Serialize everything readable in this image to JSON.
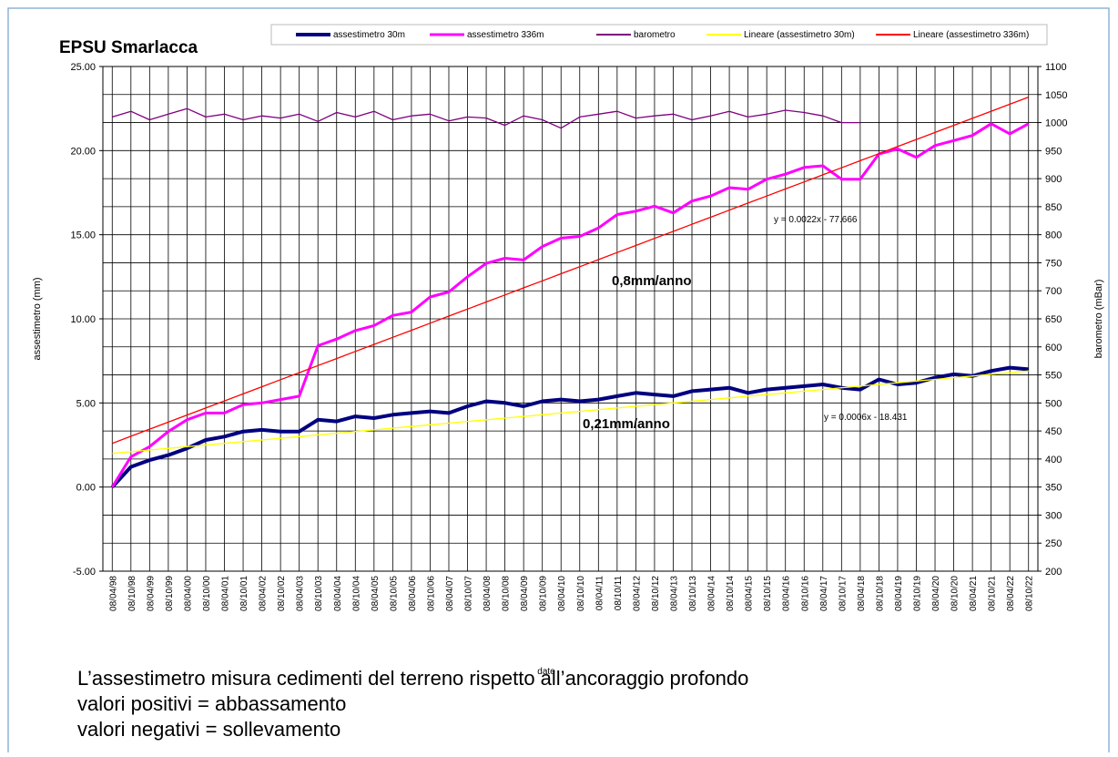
{
  "chart_data": {
    "type": "line",
    "title": "EPSU Smarlacca",
    "y_label": "assestimetro (mm)",
    "y2_label": "barometro (mBar)",
    "x_label": "date",
    "legend": "top",
    "grid": true,
    "categories": [
      "08/04/98",
      "08/10/98",
      "08/04/99",
      "08/10/99",
      "08/04/00",
      "08/10/00",
      "08/04/01",
      "08/10/01",
      "08/04/02",
      "08/10/02",
      "08/04/03",
      "08/10/03",
      "08/04/04",
      "08/10/04",
      "08/04/05",
      "08/10/05",
      "08/04/06",
      "08/10/06",
      "08/04/07",
      "08/10/07",
      "08/04/08",
      "08/10/08",
      "08/04/09",
      "08/10/09",
      "08/04/10",
      "08/10/10",
      "08/04/11",
      "08/10/11",
      "08/04/12",
      "08/10/12",
      "08/04/13",
      "08/10/13",
      "08/04/14",
      "08/10/14",
      "08/04/15",
      "08/10/15",
      "08/04/16",
      "08/10/16",
      "08/04/17",
      "08/10/17",
      "08/04/18",
      "08/10/18",
      "08/04/19",
      "08/10/19",
      "08/04/20",
      "08/10/20",
      "08/04/21",
      "08/10/21",
      "08/04/22",
      "08/10/22"
    ],
    "ylim": [
      -5,
      25
    ],
    "yticks": [
      {
        "value": -5,
        "label": "-5.00"
      },
      {
        "value": 0,
        "label": "0.00"
      },
      {
        "value": 5,
        "label": "5.00"
      },
      {
        "value": 10,
        "label": "10.00"
      },
      {
        "value": 15,
        "label": "15.00"
      },
      {
        "value": 20,
        "label": "20.00"
      },
      {
        "value": 25,
        "label": "25.00"
      }
    ],
    "y2lim": [
      200,
      1100
    ],
    "y2ticks": [
      200,
      250,
      300,
      350,
      400,
      450,
      500,
      550,
      600,
      650,
      700,
      750,
      800,
      850,
      900,
      950,
      1000,
      1050,
      1100
    ],
    "series": [
      {
        "name": "assestimetro 30m",
        "color": "#000080",
        "values": [
          0.0,
          1.2,
          1.6,
          1.9,
          2.3,
          2.8,
          3.0,
          3.3,
          3.4,
          3.3,
          3.3,
          4.0,
          3.9,
          4.2,
          4.1,
          4.3,
          4.4,
          4.5,
          4.4,
          4.8,
          5.1,
          5.0,
          4.8,
          5.1,
          5.2,
          5.1,
          5.2,
          5.4,
          5.6,
          5.5,
          5.4,
          5.7,
          5.8,
          5.9,
          5.6,
          5.8,
          5.9,
          6.0,
          6.1,
          5.9,
          5.8,
          6.4,
          6.1,
          6.2,
          6.5,
          6.7,
          6.6,
          6.9,
          7.1,
          7.0
        ]
      },
      {
        "name": "assestimetro 336m",
        "color": "#ff00ff",
        "values": [
          0.0,
          1.8,
          2.4,
          3.3,
          4.0,
          4.4,
          4.4,
          4.9,
          5.0,
          5.2,
          5.4,
          8.4,
          8.8,
          9.3,
          9.6,
          10.2,
          10.4,
          11.3,
          11.6,
          12.5,
          13.3,
          13.6,
          13.5,
          14.3,
          14.8,
          14.9,
          15.4,
          16.2,
          16.4,
          16.7,
          16.3,
          17.0,
          17.3,
          17.8,
          17.7,
          18.3,
          18.6,
          19.0,
          19.1,
          18.3,
          18.3,
          19.8,
          20.1,
          19.6,
          20.3,
          20.6,
          20.9,
          21.6,
          21.0,
          21.6
        ]
      },
      {
        "name": "barometro",
        "color": "#800080",
        "axis": "y2",
        "values": [
          1010,
          1020,
          1005,
          1015,
          1025,
          1010,
          1015,
          1005,
          1012,
          1008,
          1015,
          1002,
          1018,
          1010,
          1020,
          1005,
          1012,
          1015,
          1003,
          1010,
          1008,
          995,
          1012,
          1005,
          990,
          1010,
          1015,
          1020,
          1008,
          1012,
          1015,
          1005,
          1012,
          1020,
          1010,
          1015,
          1022,
          1018,
          1012,
          1000,
          1000,
          null,
          null,
          null,
          null,
          null,
          null,
          null,
          null,
          null
        ]
      },
      {
        "name": "Lineare (assestimetro 30m)",
        "color": "#ffff00",
        "values": [
          2.0,
          2.1,
          2.2,
          2.3,
          2.4,
          2.5,
          2.6,
          2.7,
          2.8,
          2.9,
          3.0,
          3.1,
          3.2,
          3.3,
          3.4,
          3.5,
          3.6,
          3.7,
          3.8,
          3.9,
          4.0,
          4.1,
          4.2,
          4.3,
          4.4,
          4.5,
          4.6,
          4.7,
          4.8,
          4.9,
          5.0,
          5.1,
          5.2,
          5.3,
          5.4,
          5.5,
          5.6,
          5.7,
          5.8,
          5.9,
          6.0,
          6.1,
          6.2,
          6.3,
          6.4,
          6.5,
          6.6,
          6.7,
          6.8,
          6.9
        ]
      },
      {
        "name": "Lineare (assestimetro 336m)",
        "color": "#ff0000",
        "values": [
          2.6,
          3.02,
          3.44,
          3.86,
          4.28,
          4.7,
          5.12,
          5.54,
          5.96,
          6.38,
          6.8,
          7.22,
          7.64,
          8.06,
          8.48,
          8.9,
          9.32,
          9.74,
          10.16,
          10.58,
          11.0,
          11.42,
          11.84,
          12.26,
          12.68,
          13.1,
          13.52,
          13.94,
          14.36,
          14.78,
          15.2,
          15.62,
          16.04,
          16.46,
          16.88,
          17.3,
          17.72,
          18.14,
          18.56,
          18.98,
          19.4,
          19.82,
          20.24,
          20.66,
          21.08,
          21.5,
          21.92,
          22.34,
          22.76,
          23.18
        ]
      }
    ],
    "annotations": [
      "y = 0.0022x - 77.666",
      "0,8mm/anno",
      "y = 0.0006x - 18.431",
      "0,21mm/anno"
    ]
  },
  "caption": [
    "L’assestimetro misura cedimenti del terreno rispetto all’ancoraggio profondo",
    "valori positivi = abbassamento",
    "valori negativi = sollevamento"
  ]
}
